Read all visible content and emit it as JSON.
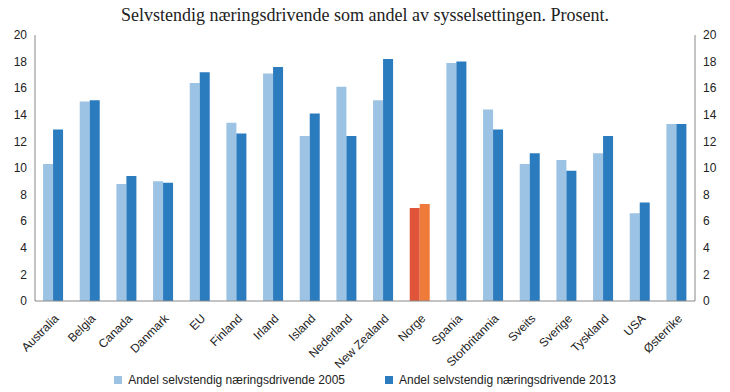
{
  "chart_data": {
    "type": "bar",
    "title": "Selvstendig næringsdrivende som andel av sysselsettingen. Prosent.",
    "categories": [
      "Australia",
      "Belgia",
      "Canada",
      "Danmark",
      "EU",
      "Finland",
      "Irland",
      "Island",
      "Nederland",
      "New Zealand",
      "Norge",
      "Spania",
      "Storbritannia",
      "Sveits",
      "Sverige",
      "Tyskland",
      "USA",
      "Østerrike"
    ],
    "series": [
      {
        "name": "Andel selvstendig næringsdrivende 2005",
        "color": "#9cc3e4",
        "colors": [
          "#9cc3e4",
          "#9cc3e4",
          "#9cc3e4",
          "#9cc3e4",
          "#9cc3e4",
          "#9cc3e4",
          "#9cc3e4",
          "#9cc3e4",
          "#9cc3e4",
          "#9cc3e4",
          "#e0553a",
          "#9cc3e4",
          "#9cc3e4",
          "#9cc3e4",
          "#9cc3e4",
          "#9cc3e4",
          "#9cc3e4",
          "#9cc3e4"
        ],
        "values": [
          10.3,
          15.0,
          8.8,
          9.0,
          16.4,
          13.4,
          17.1,
          12.4,
          16.1,
          15.1,
          7.0,
          17.9,
          14.4,
          10.3,
          10.6,
          11.1,
          6.6,
          13.3
        ]
      },
      {
        "name": "Andel selvstendig næringsdrivende 2013",
        "color": "#2b7bbf",
        "colors": [
          "#2b7bbf",
          "#2b7bbf",
          "#2b7bbf",
          "#2b7bbf",
          "#2b7bbf",
          "#2b7bbf",
          "#2b7bbf",
          "#2b7bbf",
          "#2b7bbf",
          "#2b7bbf",
          "#f07a3a",
          "#2b7bbf",
          "#2b7bbf",
          "#2b7bbf",
          "#2b7bbf",
          "#2b7bbf",
          "#2b7bbf",
          "#2b7bbf"
        ],
        "values": [
          12.9,
          15.1,
          9.4,
          8.9,
          17.2,
          12.6,
          17.6,
          14.1,
          12.4,
          18.2,
          7.3,
          18.0,
          12.9,
          11.1,
          9.8,
          12.4,
          7.4,
          13.3
        ]
      }
    ],
    "ylim": [
      0,
      20
    ],
    "yticks": [
      0,
      2,
      4,
      6,
      8,
      10,
      12,
      14,
      16,
      18,
      20
    ],
    "grid": false,
    "legend": "bottom"
  }
}
